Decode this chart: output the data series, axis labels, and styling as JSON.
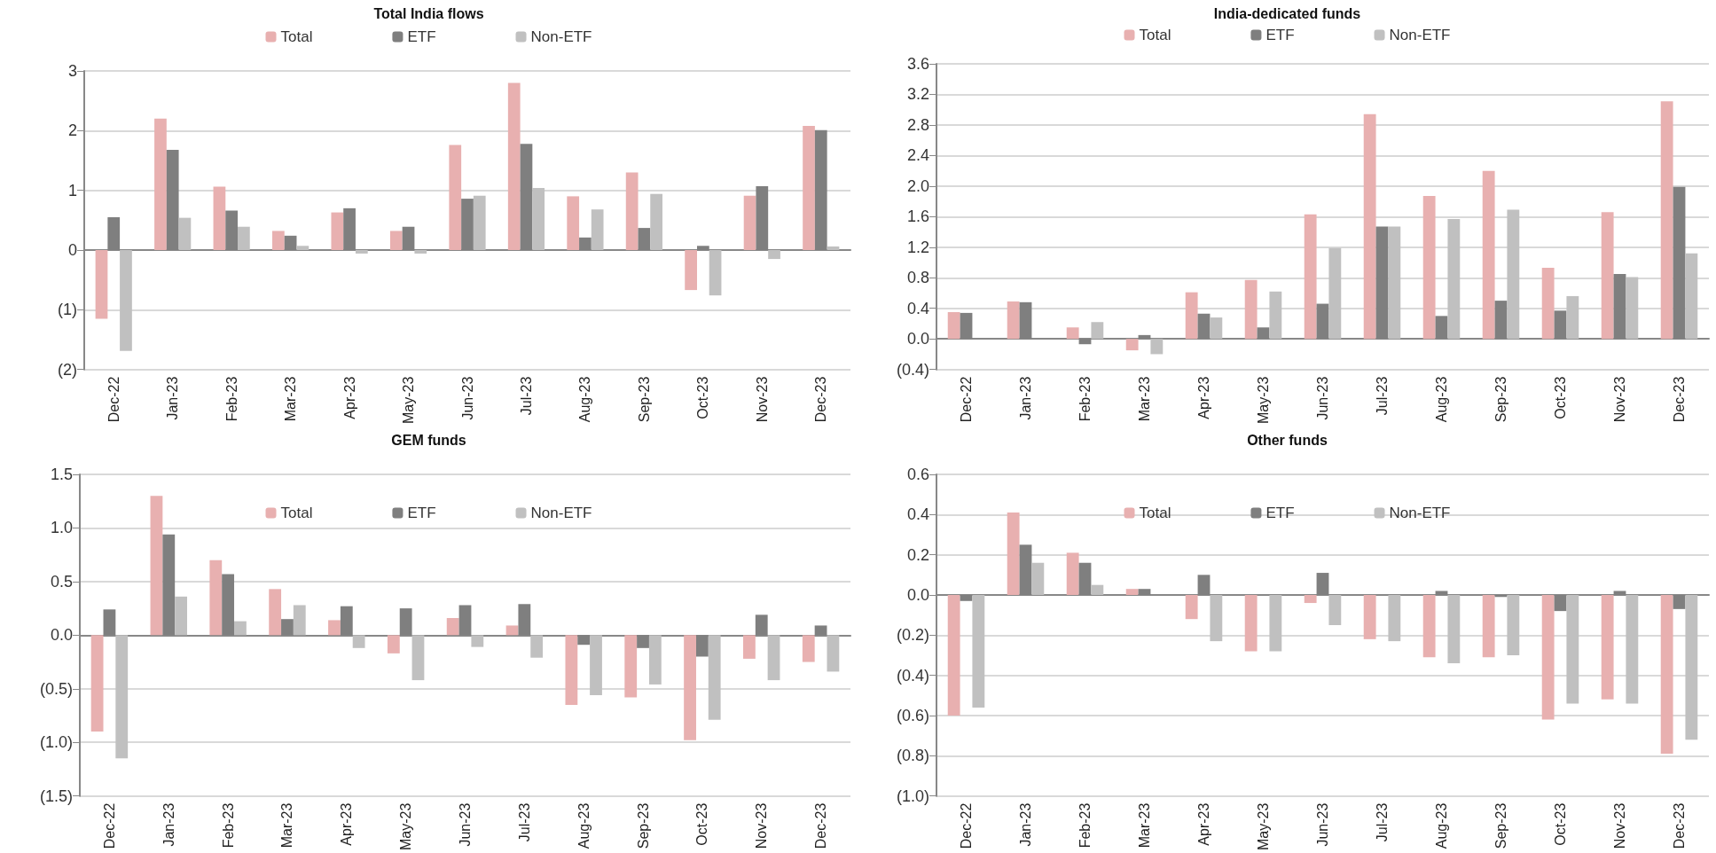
{
  "chart_data": [
    {
      "type": "bar",
      "title": "Total India flows",
      "categories": [
        "Dec-22",
        "Jan-23",
        "Feb-23",
        "Mar-23",
        "Apr-23",
        "May-23",
        "Jun-23",
        "Jul-23",
        "Aug-23",
        "Sep-23",
        "Oct-23",
        "Nov-23",
        "Dec-23"
      ],
      "series": [
        {
          "name": "Total",
          "color": "#e8b0b0",
          "values": [
            -1.15,
            2.2,
            1.06,
            0.32,
            0.63,
            0.32,
            1.76,
            2.8,
            0.9,
            1.3,
            -0.67,
            0.91,
            2.08
          ]
        },
        {
          "name": "ETF",
          "color": "#7f7f7f",
          "values": [
            0.55,
            1.68,
            0.66,
            0.24,
            0.7,
            0.39,
            0.86,
            1.78,
            0.21,
            0.37,
            0.07,
            1.07,
            2.01
          ]
        },
        {
          "name": "Non-ETF",
          "color": "#c0c0c0",
          "values": [
            -1.69,
            0.54,
            0.39,
            0.07,
            -0.06,
            -0.06,
            0.91,
            1.04,
            0.68,
            0.94,
            -0.76,
            -0.15,
            0.06
          ]
        }
      ],
      "ylim": [
        -2,
        3
      ],
      "yticks": [
        {
          "value": -2,
          "label": "(2)"
        },
        {
          "value": -1,
          "label": "(1)"
        },
        0,
        1,
        2,
        3
      ],
      "grid": "y",
      "legend": "top"
    },
    {
      "type": "bar",
      "title": "India-dedicated funds",
      "categories": [
        "Dec-22",
        "Jan-23",
        "Feb-23",
        "Mar-23",
        "Apr-23",
        "May-23",
        "Jun-23",
        "Jul-23",
        "Aug-23",
        "Sep-23",
        "Oct-23",
        "Nov-23",
        "Dec-23"
      ],
      "series": [
        {
          "name": "Total",
          "color": "#e8b0b0",
          "values": [
            0.35,
            0.49,
            0.15,
            -0.15,
            0.61,
            0.77,
            1.63,
            2.94,
            1.87,
            2.2,
            0.93,
            1.66,
            3.11
          ]
        },
        {
          "name": "ETF",
          "color": "#7f7f7f",
          "values": [
            0.34,
            0.48,
            -0.07,
            0.05,
            0.33,
            0.15,
            0.46,
            1.47,
            0.3,
            0.5,
            0.37,
            0.85,
            1.99
          ]
        },
        {
          "name": "Non-ETF",
          "color": "#c0c0c0",
          "values": [
            0,
            0,
            0.22,
            -0.2,
            0.28,
            0.62,
            1.19,
            1.47,
            1.57,
            1.69,
            0.56,
            0.81,
            1.12
          ]
        }
      ],
      "ylim": [
        -0.4,
        3.6
      ],
      "yticks": [
        {
          "value": -0.4,
          "label": "(0.4)"
        },
        {
          "value": 0,
          "label": "0.0"
        },
        0.4,
        0.8,
        1.2,
        1.6,
        {
          "value": 2,
          "label": "2.0"
        },
        2.4,
        2.8,
        3.2,
        3.6
      ],
      "grid": "y",
      "legend": "top"
    },
    {
      "type": "bar",
      "title": "GEM funds",
      "categories": [
        "Dec-22",
        "Jan-23",
        "Feb-23",
        "Mar-23",
        "Apr-23",
        "May-23",
        "Jun-23",
        "Jul-23",
        "Aug-23",
        "Sep-23",
        "Oct-23",
        "Nov-23",
        "Dec-23"
      ],
      "series": [
        {
          "name": "Total",
          "color": "#e8b0b0",
          "values": [
            -0.9,
            1.3,
            0.7,
            0.43,
            0.14,
            -0.17,
            0.16,
            0.09,
            -0.65,
            -0.58,
            -0.98,
            -0.22,
            -0.25
          ]
        },
        {
          "name": "ETF",
          "color": "#7f7f7f",
          "values": [
            0.24,
            0.94,
            0.57,
            0.15,
            0.27,
            0.25,
            0.28,
            0.29,
            -0.09,
            -0.12,
            -0.2,
            0.19,
            0.09
          ]
        },
        {
          "name": "Non-ETF",
          "color": "#c0c0c0",
          "values": [
            -1.15,
            0.36,
            0.13,
            0.28,
            -0.12,
            -0.42,
            -0.11,
            -0.21,
            -0.56,
            -0.46,
            -0.79,
            -0.42,
            -0.34
          ]
        }
      ],
      "ylim": [
        -1.5,
        1.5
      ],
      "yticks": [
        {
          "value": -1.5,
          "label": "(1.5)"
        },
        {
          "value": -1,
          "label": "(1.0)"
        },
        {
          "value": -0.5,
          "label": "(0.5)"
        },
        {
          "value": 0,
          "label": "0.0"
        },
        0.5,
        {
          "value": 1,
          "label": "1.0"
        },
        1.5
      ],
      "grid": "y",
      "legend": "top"
    },
    {
      "type": "bar",
      "title": "Other funds",
      "categories": [
        "Dec-22",
        "Jan-23",
        "Feb-23",
        "Mar-23",
        "Apr-23",
        "May-23",
        "Jun-23",
        "Jul-23",
        "Aug-23",
        "Sep-23",
        "Oct-23",
        "Nov-23",
        "Dec-23"
      ],
      "series": [
        {
          "name": "Total",
          "color": "#e8b0b0",
          "values": [
            -0.6,
            0.41,
            0.21,
            0.03,
            -0.12,
            -0.28,
            -0.04,
            -0.22,
            -0.31,
            -0.31,
            -0.62,
            -0.52,
            -0.79
          ]
        },
        {
          "name": "ETF",
          "color": "#7f7f7f",
          "values": [
            -0.03,
            0.25,
            0.16,
            0.03,
            0.1,
            0,
            0.11,
            0,
            0.02,
            -0.01,
            -0.08,
            0.02,
            -0.07
          ]
        },
        {
          "name": "Non-ETF",
          "color": "#c0c0c0",
          "values": [
            -0.56,
            0.16,
            0.05,
            0,
            -0.23,
            -0.28,
            -0.15,
            -0.23,
            -0.34,
            -0.3,
            -0.54,
            -0.54,
            -0.72
          ]
        }
      ],
      "ylim": [
        -1,
        0.6
      ],
      "yticks": [
        {
          "value": -1,
          "label": "(1.0)"
        },
        {
          "value": -0.8,
          "label": "(0.8)"
        },
        {
          "value": -0.6,
          "label": "(0.6)"
        },
        {
          "value": -0.4,
          "label": "(0.4)"
        },
        {
          "value": -0.2,
          "label": "(0.2)"
        },
        {
          "value": 0,
          "label": "0.0"
        },
        0.2,
        0.4,
        0.6
      ],
      "grid": "y",
      "legend": "top"
    }
  ]
}
